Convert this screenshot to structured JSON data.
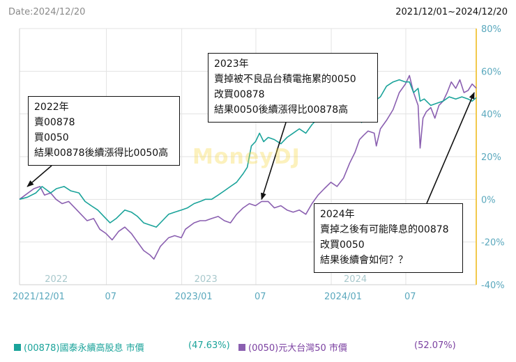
{
  "header": {
    "date_label": "Date:2024/12/20",
    "range_label": "2021/12/01~2024/12/20"
  },
  "watermark": "MoneyDJ",
  "notes": [
    {
      "lines": [
        "2022年",
        "賣00878",
        "買0050",
        "結果00878後續漲得比0050高"
      ]
    },
    {
      "lines": [
        "2023年",
        "賣掉被不良品台積電拖累的0050",
        "改買00878",
        "結果0050後續漲得比00878高"
      ]
    },
    {
      "lines": [
        "2024年",
        "賣掉之後有可能降息的00878",
        "改買0050",
        "結果後續會如何？？"
      ]
    }
  ],
  "legend": [
    {
      "label": "(00878)國泰永續高股息 市價",
      "pct": "(47.63%)",
      "color": "#1aa39a"
    },
    {
      "label": "(0050)元大台灣50 市價",
      "pct": "(52.07%)",
      "color": "#8a5fb0"
    }
  ],
  "colors": {
    "axis_right": "#f2c94c",
    "grid": "#e3e3e3",
    "tick_text": "#5aa8bd"
  },
  "chart_data": {
    "type": "line",
    "x_range": [
      "2021-12-01",
      "2024-12-20"
    ],
    "ylim": [
      -40,
      80
    ],
    "y_ticks": [
      -40,
      -20,
      0,
      20,
      40,
      60,
      80
    ],
    "y_tick_labels": [
      "-40%",
      "-20%",
      "0%",
      "20%",
      "40%",
      "60%",
      "80%"
    ],
    "x_ticks": [
      {
        "date": "2021-12-01",
        "label": "2021/12/01"
      },
      {
        "date": "2022-07-01",
        "label": "07"
      },
      {
        "date": "2023-01-01",
        "label": "2023/01"
      },
      {
        "date": "2023-07-01",
        "label": "07"
      },
      {
        "date": "2024-01-01",
        "label": "2024/01"
      },
      {
        "date": "2024-07-01",
        "label": "07"
      }
    ],
    "year_labels": [
      {
        "date": "2022-01-01",
        "label": "2022"
      },
      {
        "date": "2023-01-01",
        "label": "2023"
      },
      {
        "date": "2024-01-01",
        "label": "2024"
      }
    ],
    "grid": true,
    "series": [
      {
        "name": "(00878)國泰永續高股息 市價",
        "color": "#1aa39a",
        "points": [
          [
            "2021-12-01",
            0
          ],
          [
            "2021-12-20",
            1
          ],
          [
            "2022-01-10",
            3
          ],
          [
            "2022-01-25",
            6
          ],
          [
            "2022-02-15",
            3
          ],
          [
            "2022-03-01",
            5
          ],
          [
            "2022-03-20",
            6
          ],
          [
            "2022-04-05",
            4
          ],
          [
            "2022-04-25",
            3
          ],
          [
            "2022-05-10",
            -1
          ],
          [
            "2022-05-25",
            -3
          ],
          [
            "2022-06-10",
            -5
          ],
          [
            "2022-06-25",
            -8
          ],
          [
            "2022-07-10",
            -11
          ],
          [
            "2022-07-25",
            -9
          ],
          [
            "2022-08-15",
            -5
          ],
          [
            "2022-08-31",
            -6
          ],
          [
            "2022-09-15",
            -8
          ],
          [
            "2022-09-30",
            -11
          ],
          [
            "2022-10-15",
            -12
          ],
          [
            "2022-10-31",
            -13
          ],
          [
            "2022-11-15",
            -10
          ],
          [
            "2022-11-30",
            -7
          ],
          [
            "2022-12-15",
            -6
          ],
          [
            "2022-12-31",
            -5
          ],
          [
            "2023-01-15",
            -4
          ],
          [
            "2023-01-31",
            -2
          ],
          [
            "2023-02-15",
            -1
          ],
          [
            "2023-02-28",
            0
          ],
          [
            "2023-03-15",
            0
          ],
          [
            "2023-03-31",
            2
          ],
          [
            "2023-04-15",
            4
          ],
          [
            "2023-04-30",
            6
          ],
          [
            "2023-05-15",
            8
          ],
          [
            "2023-05-31",
            12
          ],
          [
            "2023-06-10",
            15
          ],
          [
            "2023-06-20",
            25
          ],
          [
            "2023-06-30",
            27
          ],
          [
            "2023-07-10",
            31
          ],
          [
            "2023-07-20",
            27
          ],
          [
            "2023-07-31",
            29
          ],
          [
            "2023-08-15",
            28
          ],
          [
            "2023-08-31",
            26
          ],
          [
            "2023-09-15",
            29
          ],
          [
            "2023-09-30",
            31
          ],
          [
            "2023-10-15",
            33
          ],
          [
            "2023-10-31",
            31
          ],
          [
            "2023-11-15",
            35
          ],
          [
            "2023-11-30",
            38
          ],
          [
            "2023-12-15",
            42
          ],
          [
            "2023-12-31",
            40
          ],
          [
            "2024-01-15",
            42
          ],
          [
            "2024-01-31",
            42
          ],
          [
            "2024-02-15",
            43
          ],
          [
            "2024-02-28",
            44
          ],
          [
            "2024-03-10",
            41
          ],
          [
            "2024-03-15",
            36
          ],
          [
            "2024-03-25",
            39
          ],
          [
            "2024-03-31",
            41
          ],
          [
            "2024-04-15",
            46
          ],
          [
            "2024-04-30",
            48
          ],
          [
            "2024-05-15",
            53
          ],
          [
            "2024-05-31",
            55
          ],
          [
            "2024-06-15",
            56
          ],
          [
            "2024-06-30",
            55
          ],
          [
            "2024-07-10",
            55
          ],
          [
            "2024-07-20",
            50
          ],
          [
            "2024-07-31",
            52
          ],
          [
            "2024-08-05",
            46
          ],
          [
            "2024-08-15",
            47
          ],
          [
            "2024-08-31",
            44
          ],
          [
            "2024-09-15",
            45
          ],
          [
            "2024-09-30",
            46
          ],
          [
            "2024-10-15",
            48
          ],
          [
            "2024-10-31",
            47
          ],
          [
            "2024-11-15",
            48
          ],
          [
            "2024-11-30",
            47
          ],
          [
            "2024-12-10",
            46
          ],
          [
            "2024-12-20",
            47.63
          ]
        ]
      },
      {
        "name": "(0050)元大台灣50 市價",
        "color": "#8a5fb0",
        "points": [
          [
            "2021-12-01",
            0
          ],
          [
            "2021-12-15",
            2
          ],
          [
            "2022-01-05",
            5
          ],
          [
            "2022-01-20",
            6
          ],
          [
            "2022-01-31",
            2
          ],
          [
            "2022-02-15",
            3
          ],
          [
            "2022-02-28",
            0
          ],
          [
            "2022-03-15",
            -2
          ],
          [
            "2022-03-31",
            -1
          ],
          [
            "2022-04-15",
            -4
          ],
          [
            "2022-04-30",
            -7
          ],
          [
            "2022-05-15",
            -10
          ],
          [
            "2022-05-31",
            -9
          ],
          [
            "2022-06-15",
            -14
          ],
          [
            "2022-06-30",
            -16
          ],
          [
            "2022-07-15",
            -19
          ],
          [
            "2022-07-31",
            -15
          ],
          [
            "2022-08-15",
            -13
          ],
          [
            "2022-08-31",
            -16
          ],
          [
            "2022-09-15",
            -20
          ],
          [
            "2022-09-30",
            -24
          ],
          [
            "2022-10-15",
            -26
          ],
          [
            "2022-10-25",
            -28
          ],
          [
            "2022-11-10",
            -22
          ],
          [
            "2022-11-30",
            -18
          ],
          [
            "2022-12-15",
            -17
          ],
          [
            "2022-12-31",
            -18
          ],
          [
            "2023-01-10",
            -14
          ],
          [
            "2023-01-31",
            -11
          ],
          [
            "2023-02-15",
            -10
          ],
          [
            "2023-02-28",
            -10
          ],
          [
            "2023-03-15",
            -9
          ],
          [
            "2023-03-31",
            -8
          ],
          [
            "2023-04-15",
            -10
          ],
          [
            "2023-04-30",
            -11
          ],
          [
            "2023-05-15",
            -7
          ],
          [
            "2023-05-31",
            -4
          ],
          [
            "2023-06-15",
            -2
          ],
          [
            "2023-06-30",
            -3
          ],
          [
            "2023-07-15",
            -1
          ],
          [
            "2023-07-31",
            -1
          ],
          [
            "2023-08-15",
            -4
          ],
          [
            "2023-08-31",
            -3
          ],
          [
            "2023-09-15",
            -5
          ],
          [
            "2023-09-30",
            -6
          ],
          [
            "2023-10-15",
            -5
          ],
          [
            "2023-10-31",
            -7
          ],
          [
            "2023-11-15",
            -2
          ],
          [
            "2023-11-30",
            2
          ],
          [
            "2023-12-15",
            5
          ],
          [
            "2023-12-31",
            8
          ],
          [
            "2024-01-15",
            6
          ],
          [
            "2024-01-31",
            10
          ],
          [
            "2024-02-15",
            17
          ],
          [
            "2024-02-28",
            22
          ],
          [
            "2024-03-10",
            28
          ],
          [
            "2024-03-20",
            30
          ],
          [
            "2024-03-31",
            32
          ],
          [
            "2024-04-15",
            31
          ],
          [
            "2024-04-20",
            25
          ],
          [
            "2024-04-30",
            33
          ],
          [
            "2024-05-15",
            37
          ],
          [
            "2024-05-31",
            42
          ],
          [
            "2024-06-15",
            50
          ],
          [
            "2024-06-30",
            54
          ],
          [
            "2024-07-10",
            58
          ],
          [
            "2024-07-20",
            50
          ],
          [
            "2024-07-31",
            44
          ],
          [
            "2024-08-05",
            24
          ],
          [
            "2024-08-12",
            38
          ],
          [
            "2024-08-20",
            41
          ],
          [
            "2024-08-31",
            43
          ],
          [
            "2024-09-10",
            38
          ],
          [
            "2024-09-20",
            44
          ],
          [
            "2024-09-30",
            46
          ],
          [
            "2024-10-10",
            50
          ],
          [
            "2024-10-20",
            55
          ],
          [
            "2024-10-31",
            52
          ],
          [
            "2024-11-10",
            56
          ],
          [
            "2024-11-20",
            50
          ],
          [
            "2024-11-30",
            51
          ],
          [
            "2024-12-10",
            54
          ],
          [
            "2024-12-20",
            52.07
          ]
        ]
      }
    ],
    "annotations": [
      {
        "text_ref": "notes.0",
        "arrow_to": [
          "2021-12-20",
          6
        ]
      },
      {
        "text_ref": "notes.1",
        "arrow_to": [
          "2023-07-15",
          0
        ]
      },
      {
        "text_ref": "notes.2",
        "arrow_to": [
          "2024-12-15",
          50
        ]
      }
    ]
  }
}
